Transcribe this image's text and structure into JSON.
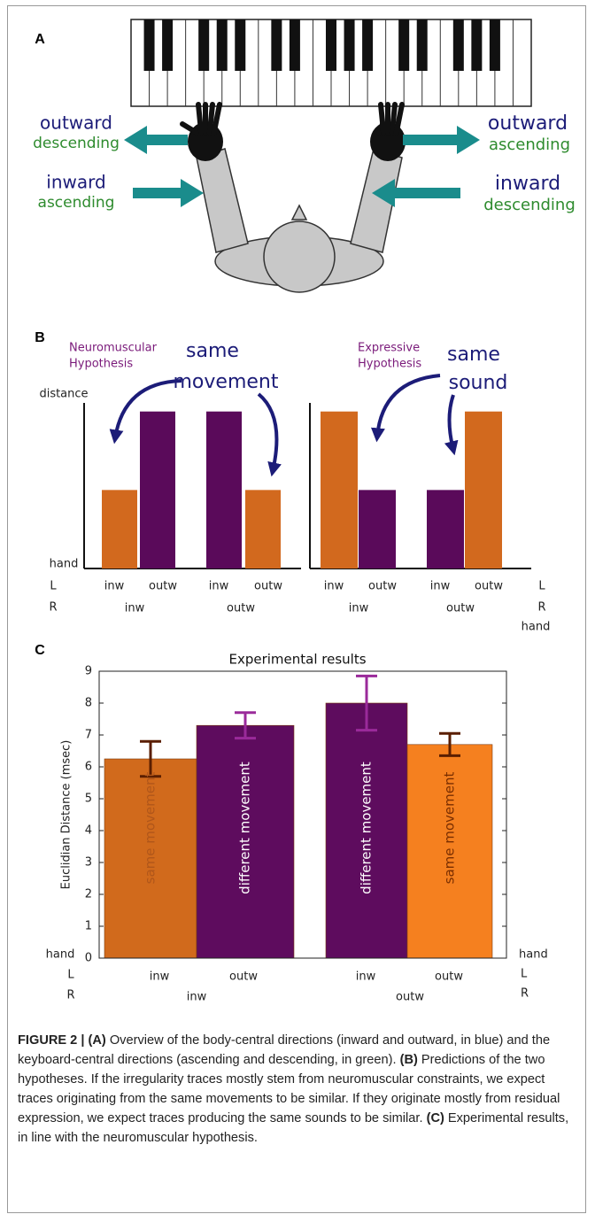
{
  "panel_labels": [
    "A",
    "B",
    "C"
  ],
  "panel_a": {
    "left": [
      {
        "direction": "outward",
        "keyboard": "descending"
      },
      {
        "direction": "inward",
        "keyboard": "ascending"
      }
    ],
    "right": [
      {
        "direction": "outward",
        "keyboard": "ascending"
      },
      {
        "direction": "inward",
        "keyboard": "descending"
      }
    ]
  },
  "chart_data": [
    {
      "type": "bar",
      "title": [
        "Neuromuscular",
        "Hypothesis"
      ],
      "annotation": [
        "same",
        "movement"
      ],
      "y_label": "distance",
      "side_labels": [
        "hand",
        "L",
        "R"
      ],
      "categories": [
        "inw",
        "outw",
        "inw",
        "outw"
      ],
      "groups": [
        "inw",
        "outw"
      ],
      "values": [
        0.45,
        0.9,
        0.9,
        0.45
      ],
      "colors": [
        "#d2691e",
        "#5a0a5a",
        "#5a0a5a",
        "#d2691e"
      ],
      "ylim": [
        0,
        1
      ]
    },
    {
      "type": "bar",
      "title": [
        "Expressive",
        "Hypothesis"
      ],
      "annotation": [
        "same",
        "sound"
      ],
      "side_labels": [
        "L",
        "R",
        "hand"
      ],
      "categories": [
        "inw",
        "outw",
        "inw",
        "outw"
      ],
      "groups": [
        "inw",
        "outw"
      ],
      "values": [
        0.9,
        0.45,
        0.45,
        0.9
      ],
      "colors": [
        "#d2691e",
        "#5a0a5a",
        "#5a0a5a",
        "#d2691e"
      ],
      "ylim": [
        0,
        1
      ]
    },
    {
      "type": "errorbar",
      "title": "Experimental results",
      "y_label": "Euclidian Distance (msec)",
      "categories": [
        "inw",
        "outw",
        "inw",
        "outw"
      ],
      "groups": [
        "inw",
        "outw"
      ],
      "bar_labels": [
        "same movement",
        "different movement",
        "different movement",
        "same movement"
      ],
      "values": [
        6.25,
        7.3,
        8.0,
        6.7
      ],
      "errors": [
        0.55,
        0.4,
        0.85,
        0.35
      ],
      "colors": [
        "#d16a1c",
        "#5e0c5e",
        "#5e0c5e",
        "#f5801f"
      ],
      "error_colors": [
        "#5a1e00",
        "#9a2a9a",
        "#9a2a9a",
        "#5a1e00"
      ],
      "label_colors": [
        "#b0561a",
        "#ffffff",
        "#ffffff",
        "#7a2e00"
      ],
      "ylim": [
        0,
        9
      ],
      "yticks": [
        0,
        1,
        2,
        3,
        4,
        5,
        6,
        7,
        8,
        9
      ],
      "left_labels": [
        "hand",
        "L",
        "R"
      ],
      "right_labels": [
        "hand",
        "L",
        "R"
      ]
    }
  ],
  "caption": [
    {
      "text": "FIGURE 2 | (A)",
      "bold": true
    },
    {
      "text": " Overview of the body-central directions (inward and outward, in blue) and the keyboard-central directions (ascending and descending, in green). ",
      "bold": false
    },
    {
      "text": "(B)",
      "bold": true
    },
    {
      "text": " Predictions of the two hypotheses. If the irregularity traces mostly stem from neuromuscular constraints, we expect traces originating from the same movements to be similar. If they originate mostly from residual expression, we expect traces producing the same sounds to be similar. ",
      "bold": false
    },
    {
      "text": "(C)",
      "bold": true
    },
    {
      "text": " Experimental results, in line with the neuromuscular hypothesis.",
      "bold": false
    }
  ]
}
